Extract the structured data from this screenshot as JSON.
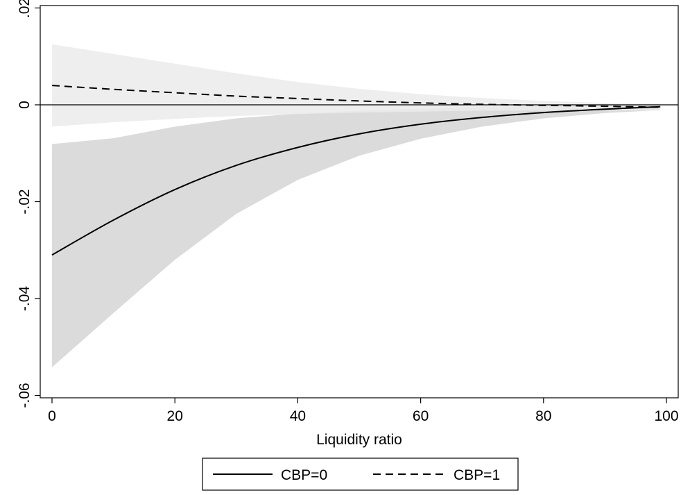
{
  "chart_data": {
    "type": "line",
    "title": "",
    "xlabel": "Liquidity ratio",
    "ylabel": "",
    "xlim": [
      0,
      100
    ],
    "ylim": [
      -0.06,
      0.02
    ],
    "x_ticks": [
      0,
      20,
      40,
      60,
      80,
      100
    ],
    "x_tick_labels": [
      "0",
      "20",
      "40",
      "60",
      "80",
      "100"
    ],
    "y_ticks": [
      0.02,
      0,
      -0.02,
      -0.04,
      -0.06
    ],
    "y_tick_labels": [
      ".02",
      "0",
      "-.02",
      "-.04",
      "-.06"
    ],
    "reference_line_y": 0,
    "grid": false,
    "legend_position": "bottom",
    "colors": {
      "ci_cbp0": "#d9d9d9",
      "ci_cbp1": "#ebebeb",
      "line": "#000000"
    },
    "series": [
      {
        "name": "CBP=0",
        "style": "solid",
        "x": [
          0,
          10,
          20,
          30,
          40,
          50,
          60,
          70,
          80,
          90,
          99
        ],
        "y": [
          -0.031,
          -0.0238,
          -0.0175,
          -0.0125,
          -0.0088,
          -0.006,
          -0.004,
          -0.0026,
          -0.0016,
          -0.0009,
          -0.0004
        ],
        "ci_lower": [
          -0.0542,
          -0.043,
          -0.032,
          -0.0225,
          -0.0155,
          -0.0105,
          -0.007,
          -0.0045,
          -0.0028,
          -0.0017,
          -0.0011
        ],
        "ci_upper": [
          -0.0081,
          -0.0069,
          -0.0045,
          -0.0028,
          -0.0018,
          -0.0012,
          -0.0008,
          -0.0005,
          -0.0003,
          -0.0001,
          0.0002
        ]
      },
      {
        "name": "CBP=1",
        "style": "dashed",
        "x": [
          0,
          10,
          20,
          30,
          40,
          50,
          60,
          70,
          80,
          90,
          99
        ],
        "y": [
          0.004,
          0.0032,
          0.0025,
          0.0018,
          0.0013,
          0.0008,
          0.0004,
          0.0001,
          -0.0001,
          -0.0003,
          -0.0005
        ],
        "ci_lower": [
          -0.0045,
          -0.0036,
          -0.0029,
          -0.0023,
          -0.0019,
          -0.0016,
          -0.0014,
          -0.0012,
          -0.0012,
          -0.0011,
          -0.0012
        ],
        "ci_upper": [
          0.0125,
          0.0105,
          0.0085,
          0.0065,
          0.0047,
          0.0033,
          0.0022,
          0.0014,
          0.0008,
          0.0004,
          0.0002
        ]
      }
    ]
  }
}
